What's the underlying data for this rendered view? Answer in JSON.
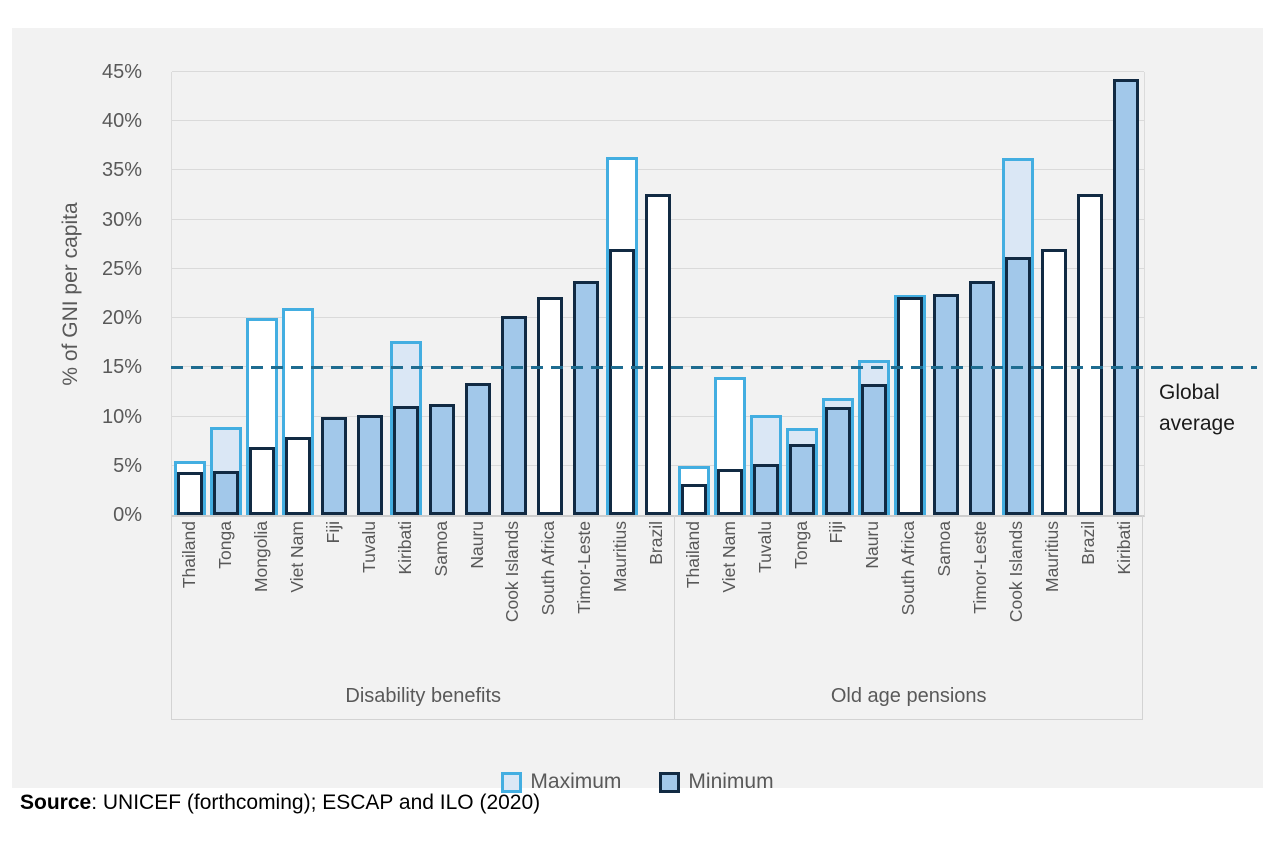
{
  "chart_data": {
    "type": "bar",
    "title": "",
    "ylabel": "% of GNI per capita",
    "ylim": [
      0,
      45
    ],
    "yticks": [
      "0%",
      "5%",
      "10%",
      "15%",
      "20%",
      "25%",
      "30%",
      "35%",
      "40%",
      "45%"
    ],
    "grid": "horizontal",
    "legend_position": "bottom",
    "legend": [
      {
        "name": "Maximum"
      },
      {
        "name": "Minimum"
      }
    ],
    "global_average": {
      "value": 15,
      "label": "Global average"
    },
    "groups": [
      {
        "label": "Disability benefits",
        "countries": [
          {
            "name": "Thailand",
            "max": 5.5,
            "min": 4.4,
            "highlighted": false
          },
          {
            "name": "Tonga",
            "max": 8.9,
            "min": 4.5,
            "highlighted": true
          },
          {
            "name": "Mongolia",
            "max": 20.0,
            "min": 6.9,
            "highlighted": false
          },
          {
            "name": "Viet Nam",
            "max": 21.0,
            "min": 7.9,
            "highlighted": false
          },
          {
            "name": "Fiji",
            "max": null,
            "min": 10.0,
            "highlighted": true
          },
          {
            "name": "Tuvalu",
            "max": null,
            "min": 10.2,
            "highlighted": true
          },
          {
            "name": "Kiribati",
            "max": 17.7,
            "min": 11.1,
            "highlighted": true
          },
          {
            "name": "Samoa",
            "max": null,
            "min": 11.3,
            "highlighted": true
          },
          {
            "name": "Nauru",
            "max": null,
            "min": 13.4,
            "highlighted": true
          },
          {
            "name": "Cook Islands",
            "max": null,
            "min": 20.2,
            "highlighted": true
          },
          {
            "name": "South Africa",
            "max": null,
            "min": 22.1,
            "highlighted": false
          },
          {
            "name": "Timor-Leste",
            "max": null,
            "min": 23.8,
            "highlighted": true
          },
          {
            "name": "Mauritius",
            "max": 36.4,
            "min": 27.0,
            "highlighted": false
          },
          {
            "name": "Brazil",
            "max": null,
            "min": 32.6,
            "highlighted": false
          }
        ]
      },
      {
        "label": "Old age pensions",
        "countries": [
          {
            "name": "Thailand",
            "max": 5.0,
            "min": 3.1,
            "highlighted": false
          },
          {
            "name": "Viet Nam",
            "max": 14.0,
            "min": 4.7,
            "highlighted": false
          },
          {
            "name": "Tuvalu",
            "max": 10.2,
            "min": 5.2,
            "highlighted": true
          },
          {
            "name": "Tonga",
            "max": 8.8,
            "min": 7.2,
            "highlighted": true
          },
          {
            "name": "Fiji",
            "max": 11.9,
            "min": 11.0,
            "highlighted": true
          },
          {
            "name": "Nauru",
            "max": 15.7,
            "min": 13.3,
            "highlighted": true
          },
          {
            "name": "South Africa",
            "max": 22.4,
            "min": 22.1,
            "highlighted": false
          },
          {
            "name": "Samoa",
            "max": null,
            "min": 22.5,
            "highlighted": true
          },
          {
            "name": "Timor-Leste",
            "max": null,
            "min": 23.8,
            "highlighted": true
          },
          {
            "name": "Cook Islands",
            "max": 36.3,
            "min": 26.2,
            "highlighted": true
          },
          {
            "name": "Mauritius",
            "max": null,
            "min": 27.0,
            "highlighted": false
          },
          {
            "name": "Brazil",
            "max": null,
            "min": 32.6,
            "highlighted": false
          },
          {
            "name": "Kiribati",
            "max": null,
            "min": 44.3,
            "highlighted": true
          }
        ]
      }
    ],
    "colors": {
      "panel_background": "#F2F2F2",
      "gridline": "#DADADA",
      "maximum_outline": "#43AEE1",
      "maximum_fill_highlighted": "#DAE7F5",
      "maximum_fill_default": "#FFFFFF",
      "minimum_outline": "#112A43",
      "minimum_fill_highlighted": "#A2C8EA",
      "minimum_fill_default": "#FFFFFF",
      "global_average_line": "#1E6C90",
      "axis_text": "#595959"
    }
  },
  "source": {
    "label": "Source",
    "text": ": UNICEF (forthcoming); ESCAP and ILO (2020)"
  }
}
